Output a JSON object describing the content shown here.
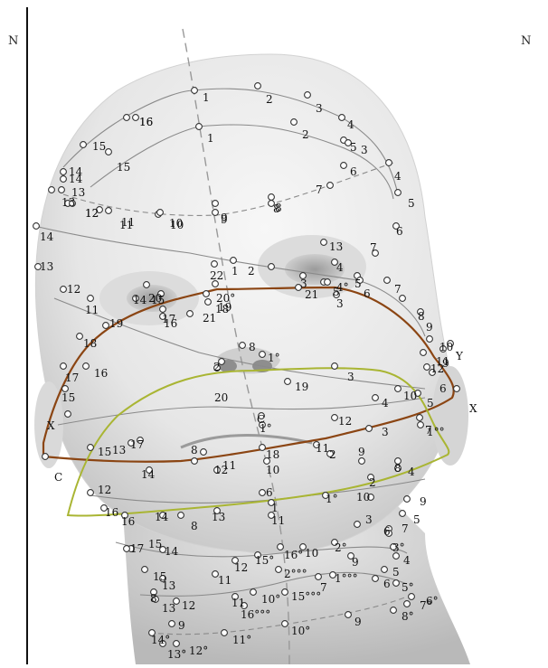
{
  "corner_labels": {
    "left": "N",
    "right": "N"
  },
  "colors": {
    "background": "#ffffff",
    "head_fill": "#ececec",
    "head_shadow": "#c9c9c9",
    "contour_line": "#8a8a8a",
    "marker_fill": "#ffffff",
    "marker_stroke": "#333333",
    "brown_path": "#8b4513",
    "olive_path": "#a9b533",
    "label_text": "#111111",
    "frame_line": "#111111"
  },
  "point_labels": [
    "1",
    "2",
    "3",
    "4",
    "5",
    "6",
    "7",
    "8",
    "9",
    "10",
    "11",
    "12",
    "13",
    "14",
    "15",
    "16",
    "1",
    "2",
    "3",
    "4",
    "5",
    "6",
    "7",
    "8",
    "9",
    "10",
    "11",
    "12",
    "13",
    "14",
    "15",
    "16",
    "14",
    "13",
    "12",
    "11",
    "18",
    "19",
    "17",
    "16",
    "15",
    "X",
    "C",
    "22",
    "1",
    "2",
    "3",
    "4",
    "5",
    "6",
    "7",
    "8",
    "9",
    "10",
    "11",
    "12",
    "13",
    "14",
    "15",
    "16",
    "17",
    "18",
    "19",
    "20",
    "21",
    "20°",
    "21",
    "4°",
    "5",
    "3",
    "8",
    "1°",
    "2",
    "20",
    "19",
    "3",
    "4",
    "10",
    "5",
    "7",
    "6",
    "9",
    "Y",
    "X",
    "C",
    "1°",
    "12",
    "11",
    "2",
    "9",
    "3",
    "8",
    "4",
    "8",
    "13",
    "17",
    "14",
    "12",
    "11",
    "18",
    "10",
    "1°°",
    "6",
    "1",
    "11",
    "1°",
    "10",
    "2",
    "9",
    "5",
    "6",
    "7",
    "3",
    "8",
    "16",
    "14",
    "13",
    "12",
    "16",
    "15",
    "17",
    "15",
    "14",
    "15",
    "13",
    "12",
    "11",
    "15°",
    "16°",
    "10",
    "2°",
    "9",
    "3°",
    "4",
    "5",
    "6",
    "7",
    "2°°°",
    "1°°°",
    "8",
    "13",
    "12",
    "11",
    "10°",
    "16°°°",
    "15°°°",
    "9",
    "14°",
    "13°",
    "12°",
    "11°",
    "10°",
    "9",
    "8°",
    "7°",
    "6°",
    "5°",
    "4°"
  ]
}
